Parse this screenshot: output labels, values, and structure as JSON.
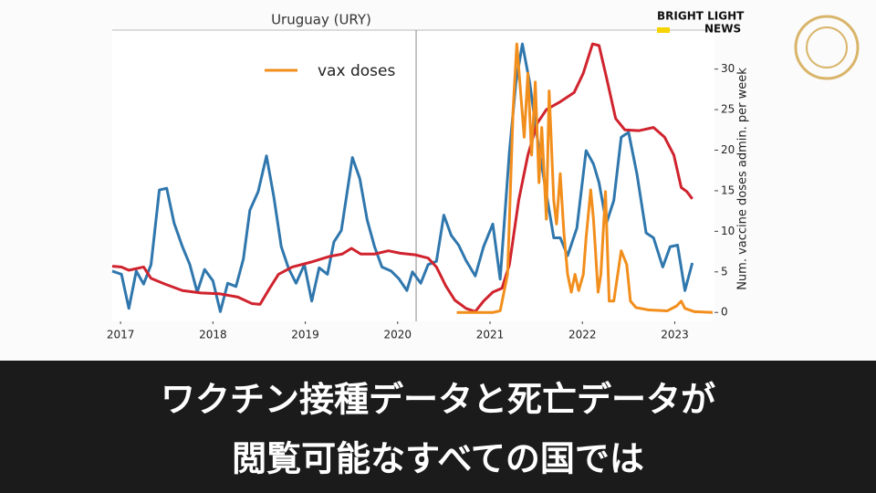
{
  "chart_data": {
    "type": "line",
    "title": "Uruguay (URY)",
    "y_label": "Num. vaccine doses admin. per week",
    "xlim": [
      2016.91,
      2023.43
    ],
    "xticks": [
      2017,
      2018,
      2019,
      2020,
      2021,
      2022,
      2023
    ],
    "ylim": [
      -1.1,
      34.8
    ],
    "yticks": [
      0,
      5,
      10,
      15,
      20,
      25,
      30
    ],
    "vline_x": 2020.2,
    "legend": "upper-left",
    "series": [
      {
        "color": "#2f77ad",
        "x": [
          2016.91,
          2017.01,
          2017.09,
          2017.17,
          2017.25,
          2017.33,
          2017.42,
          2017.5,
          2017.58,
          2017.67,
          2017.75,
          2017.83,
          2017.91,
          2018.0,
          2018.08,
          2018.16,
          2018.25,
          2018.33,
          2018.4,
          2018.49,
          2018.58,
          2018.66,
          2018.74,
          2018.82,
          2018.9,
          2018.99,
          2019.07,
          2019.15,
          2019.24,
          2019.31,
          2019.39,
          2019.51,
          2019.59,
          2019.67,
          2019.75,
          2019.83,
          2019.93,
          2020.01,
          2020.1,
          2020.16,
          2020.25,
          2020.33,
          2020.42,
          2020.5,
          2020.58,
          2020.66,
          2020.74,
          2020.84,
          2020.93,
          2021.03,
          2021.11,
          2021.21,
          2021.28,
          2021.35,
          2021.43,
          2021.51,
          2021.59,
          2021.69,
          2021.76,
          2021.84,
          2021.94,
          2022.04,
          2022.12,
          2022.18,
          2022.26,
          2022.34,
          2022.42,
          2022.5,
          2022.59,
          2022.69,
          2022.77,
          2022.87,
          2022.95,
          2023.03,
          2023.11,
          2023.19
        ],
        "values": [
          5.1,
          4.7,
          0.5,
          5.1,
          3.5,
          5.9,
          15.1,
          15.3,
          11.0,
          8.1,
          5.9,
          2.5,
          5.3,
          3.9,
          0.1,
          3.6,
          3.2,
          6.6,
          12.6,
          14.9,
          19.3,
          14.2,
          8.1,
          5.4,
          3.6,
          5.9,
          1.4,
          5.5,
          4.7,
          8.7,
          10.1,
          19.1,
          16.5,
          11.4,
          8.1,
          5.6,
          5.1,
          4.2,
          2.7,
          5.0,
          3.6,
          5.9,
          6.3,
          12.0,
          9.5,
          8.3,
          6.4,
          4.5,
          8.1,
          10.9,
          4.1,
          19.8,
          28.3,
          33.1,
          28.3,
          21.6,
          16.0,
          9.2,
          9.2,
          7.0,
          10.4,
          19.95,
          18.3,
          16.0,
          11.0,
          13.8,
          21.6,
          22.2,
          17.1,
          9.8,
          9.2,
          5.6,
          8.1,
          8.3,
          2.7,
          6.1
        ]
      },
      {
        "color": "#d0232e",
        "x": [
          2016.91,
          2017.01,
          2017.09,
          2017.25,
          2017.33,
          2017.48,
          2017.67,
          2017.87,
          2018.07,
          2018.27,
          2018.42,
          2018.51,
          2018.61,
          2018.71,
          2018.86,
          2019.06,
          2019.26,
          2019.4,
          2019.5,
          2019.6,
          2019.75,
          2019.9,
          2020.03,
          2020.19,
          2020.33,
          2020.42,
          2020.52,
          2020.62,
          2020.74,
          2020.84,
          2020.93,
          2021.03,
          2021.13,
          2021.21,
          2021.31,
          2021.41,
          2021.51,
          2021.61,
          2021.75,
          2021.91,
          2022.01,
          2022.11,
          2022.18,
          2022.26,
          2022.36,
          2022.46,
          2022.61,
          2022.77,
          2022.89,
          2022.99,
          2023.07,
          2023.13,
          2023.19
        ],
        "values": [
          5.7,
          5.6,
          5.2,
          5.6,
          4.2,
          3.5,
          2.7,
          2.4,
          2.3,
          1.9,
          1.1,
          1.0,
          2.9,
          4.7,
          5.6,
          6.2,
          6.9,
          7.2,
          7.9,
          7.2,
          7.2,
          7.6,
          7.3,
          7.1,
          6.7,
          5.6,
          3.3,
          1.5,
          0.5,
          0.1,
          1.4,
          2.5,
          3.0,
          5.9,
          13.8,
          19.4,
          23.3,
          25.0,
          25.9,
          27.1,
          29.5,
          33.1,
          32.9,
          29.0,
          23.9,
          22.5,
          22.4,
          22.8,
          21.6,
          19.4,
          15.4,
          14.9,
          14.0
        ]
      },
      {
        "name": "vax doses",
        "color": "#f28e1c",
        "x": [
          2020.64,
          2021.03,
          2021.11,
          2021.19,
          2021.25,
          2021.29,
          2021.33,
          2021.37,
          2021.41,
          2021.45,
          2021.49,
          2021.53,
          2021.56,
          2021.61,
          2021.64,
          2021.69,
          2021.72,
          2021.76,
          2021.8,
          2021.84,
          2021.88,
          2021.92,
          2021.96,
          2022.01,
          2022.04,
          2022.09,
          2022.12,
          2022.17,
          2022.2,
          2022.25,
          2022.29,
          2022.34,
          2022.42,
          2022.48,
          2022.52,
          2022.58,
          2022.72,
          2022.92,
          2023.02,
          2023.07,
          2023.11,
          2023.21,
          2023.41
        ],
        "values": [
          0,
          0,
          0.2,
          4.7,
          25.0,
          33.1,
          27.3,
          21.6,
          29.5,
          19.4,
          28.4,
          16.0,
          22.8,
          11.5,
          27.3,
          13.8,
          10.9,
          17.1,
          9.8,
          4.7,
          2.5,
          4.7,
          2.7,
          4.7,
          9.2,
          15.1,
          11.5,
          2.5,
          4.7,
          14.9,
          1.4,
          1.4,
          7.6,
          5.9,
          1.4,
          0.6,
          0.3,
          0.2,
          0.8,
          1.4,
          0.5,
          0.1,
          0
        ]
      }
    ]
  },
  "logo": {
    "line1": "BRIGHT LIGHT",
    "line2": "NEWS"
  },
  "caption": [
    "ワクチン接種データと死亡データが",
    "閲覧可能なすべての国では"
  ]
}
